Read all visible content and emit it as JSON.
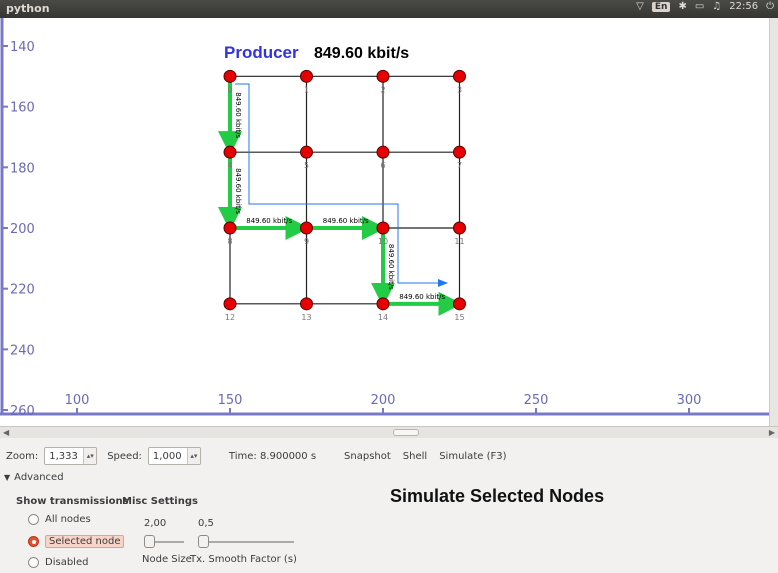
{
  "window": {
    "title": "python"
  },
  "tray": {
    "keyboard": "En",
    "time": "22:56"
  },
  "plot": {
    "producer_label": "Producer",
    "producer_rate": "849.60 kbit/s",
    "y_ticks": [
      "140",
      "160",
      "180",
      "200",
      "220",
      "240",
      "260"
    ],
    "x_ticks": [
      "100",
      "150",
      "200",
      "250",
      "300"
    ],
    "node_ids": [
      "0",
      "1",
      "2",
      "3",
      "4",
      "5",
      "6",
      "7",
      "8",
      "9",
      "10",
      "11",
      "12",
      "13",
      "14",
      "15"
    ],
    "link_rate": "849.60 kbit/s",
    "colors": {
      "node": "#e60000",
      "flow": "#22cc44",
      "axis": "#7878c8",
      "producer": "#3333dd",
      "route": "#2277ee"
    }
  },
  "controls": {
    "zoom_label": "Zoom:",
    "zoom_value": "1,333",
    "speed_label": "Speed:",
    "speed_value": "1,000",
    "time_text": "Time: 8.900000 s",
    "snapshot": "Snapshot",
    "shell": "Shell",
    "simulate": "Simulate (F3)",
    "advanced": "Advanced",
    "show_tx_header": "Show transmissions",
    "misc_header": "Misc Settings",
    "radio_all": "All nodes",
    "radio_selected": "Selected node",
    "radio_disabled": "Disabled",
    "node_size_value": "2,00",
    "smooth_value": "0,5",
    "node_size_label": "Node Size",
    "smooth_label": "Tx. Smooth Factor (s)",
    "simulate_selected_title": "Simulate Selected Nodes"
  }
}
